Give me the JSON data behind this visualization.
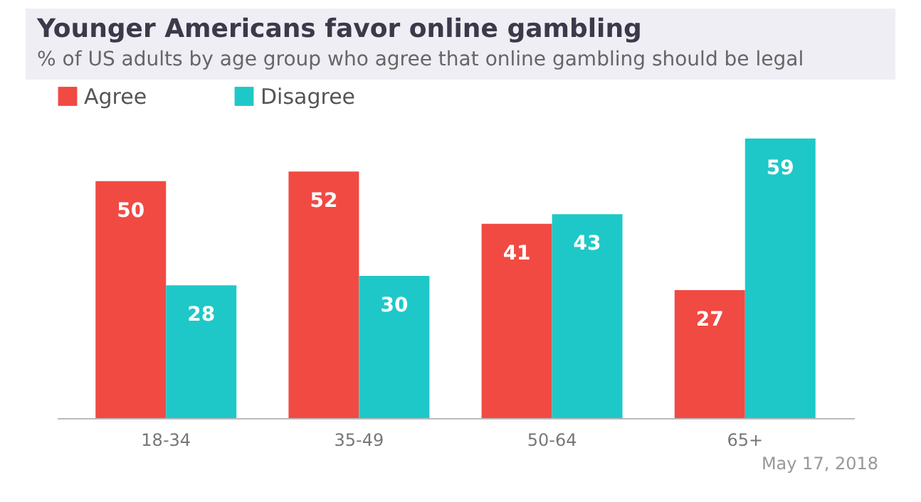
{
  "chart_data": {
    "type": "bar",
    "title": "Younger Americans favor online gambling",
    "subtitle": "% of US adults by age group who agree that online gambling should be legal",
    "categories": [
      "18-34",
      "35-49",
      "50-64",
      "65+"
    ],
    "series": [
      {
        "name": "Agree",
        "color": "#f04a43",
        "values": [
          50,
          52,
          41,
          27
        ]
      },
      {
        "name": "Disagree",
        "color": "#1ec8c8",
        "values": [
          28,
          30,
          43,
          59
        ]
      }
    ],
    "data_labels": true,
    "legend": "top",
    "tick_labels": "x",
    "annotations": [
      "May 17, 2018"
    ]
  }
}
